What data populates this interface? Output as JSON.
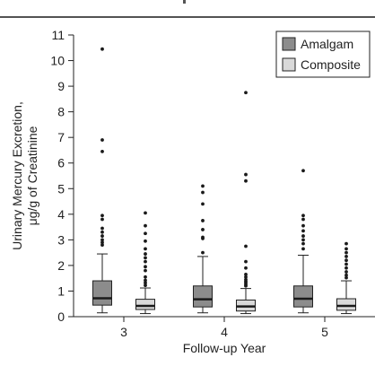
{
  "chart_data": {
    "type": "box",
    "title": "",
    "xlabel": "Follow-up Year",
    "ylabel": "Urinary Mercury Excretion,\nμg/g of Creatinine",
    "ylim": [
      0,
      11
    ],
    "yticks": [
      0,
      1,
      2,
      3,
      4,
      5,
      6,
      7,
      8,
      9,
      10,
      11
    ],
    "categories": [
      "3",
      "4",
      "5"
    ],
    "legend": {
      "position": "top-right",
      "entries": [
        "Amalgam",
        "Composite"
      ]
    },
    "colors": {
      "Amalgam": "#8c8c8c",
      "Composite": "#d9d9d9",
      "median": "#1a1a1a"
    },
    "series": [
      {
        "name": "Amalgam",
        "boxes": [
          {
            "category": "3",
            "whisker_low": 0.15,
            "q1": 0.45,
            "median": 0.72,
            "q3": 1.4,
            "whisker_high": 2.45,
            "outliers": [
              10.45,
              6.9,
              6.45,
              3.95,
              3.8,
              3.45,
              3.3,
              3.15,
              3.0,
              2.9,
              2.8
            ]
          },
          {
            "category": "4",
            "whisker_low": 0.15,
            "q1": 0.38,
            "median": 0.68,
            "q3": 1.2,
            "whisker_high": 2.35,
            "outliers": [
              5.1,
              4.85,
              4.4,
              3.75,
              3.4,
              3.1,
              3.05,
              2.5
            ]
          },
          {
            "category": "5",
            "whisker_low": 0.15,
            "q1": 0.38,
            "median": 0.7,
            "q3": 1.2,
            "whisker_high": 2.4,
            "outliers": [
              5.7,
              3.95,
              3.8,
              3.55,
              3.35,
              3.15,
              3.0,
              2.85,
              2.65
            ]
          }
        ]
      },
      {
        "name": "Composite",
        "boxes": [
          {
            "category": "3",
            "whisker_low": 0.12,
            "q1": 0.28,
            "median": 0.42,
            "q3": 0.68,
            "whisker_high": 1.12,
            "outliers": [
              4.05,
              3.55,
              3.25,
              2.95,
              2.65,
              2.45,
              2.3,
              2.15,
              1.95,
              1.8,
              1.55,
              1.42,
              1.32,
              1.22
            ]
          },
          {
            "category": "4",
            "whisker_low": 0.12,
            "q1": 0.22,
            "median": 0.4,
            "q3": 0.65,
            "whisker_high": 1.1,
            "outliers": [
              8.75,
              5.55,
              5.3,
              2.75,
              2.15,
              1.9,
              1.65,
              1.55,
              1.45,
              1.38,
              1.32,
              1.25,
              1.2
            ]
          },
          {
            "category": "5",
            "whisker_low": 0.12,
            "q1": 0.25,
            "median": 0.42,
            "q3": 0.7,
            "whisker_high": 1.4,
            "outliers": [
              2.85,
              2.65,
              2.5,
              2.35,
              2.2,
              2.05,
              1.9,
              1.75,
              1.62,
              1.52
            ]
          }
        ]
      }
    ]
  }
}
